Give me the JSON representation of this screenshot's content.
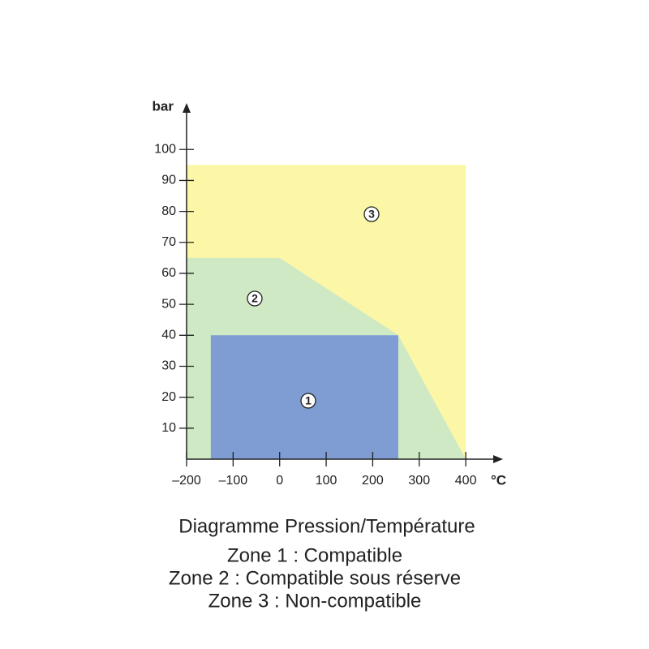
{
  "chart_data": {
    "type": "region",
    "title": "Diagramme Pression/Température",
    "x_label": "°C",
    "y_label": "bar",
    "xlim": [
      -200,
      480
    ],
    "ylim": [
      0,
      115
    ],
    "xticks": [
      {
        "value": -200,
        "label": "–200"
      },
      {
        "value": -100,
        "label": "–100"
      },
      0,
      100,
      200,
      300,
      400
    ],
    "yticks": [
      10,
      20,
      30,
      40,
      50,
      60,
      70,
      80,
      90,
      100
    ],
    "series": [
      {
        "name": "Zone 3 : Non-compatible",
        "label": "3",
        "color": "#fbf7a6",
        "x": [
          -200,
          -200,
          400,
          400
        ],
        "y": [
          0,
          95,
          95,
          0
        ]
      },
      {
        "name": "Zone 2 : Compatible sous réserve",
        "label": "2",
        "color": "#cfe9c4",
        "x": [
          -200,
          -200,
          0,
          255,
          400
        ],
        "y": [
          0,
          65,
          65,
          40,
          0
        ]
      },
      {
        "name": "Zone 1 : Compatible",
        "label": "1",
        "color": "#7f9dd3",
        "x": [
          -148,
          -148,
          255,
          255
        ],
        "y": [
          0,
          40,
          40,
          0
        ]
      }
    ]
  }
}
